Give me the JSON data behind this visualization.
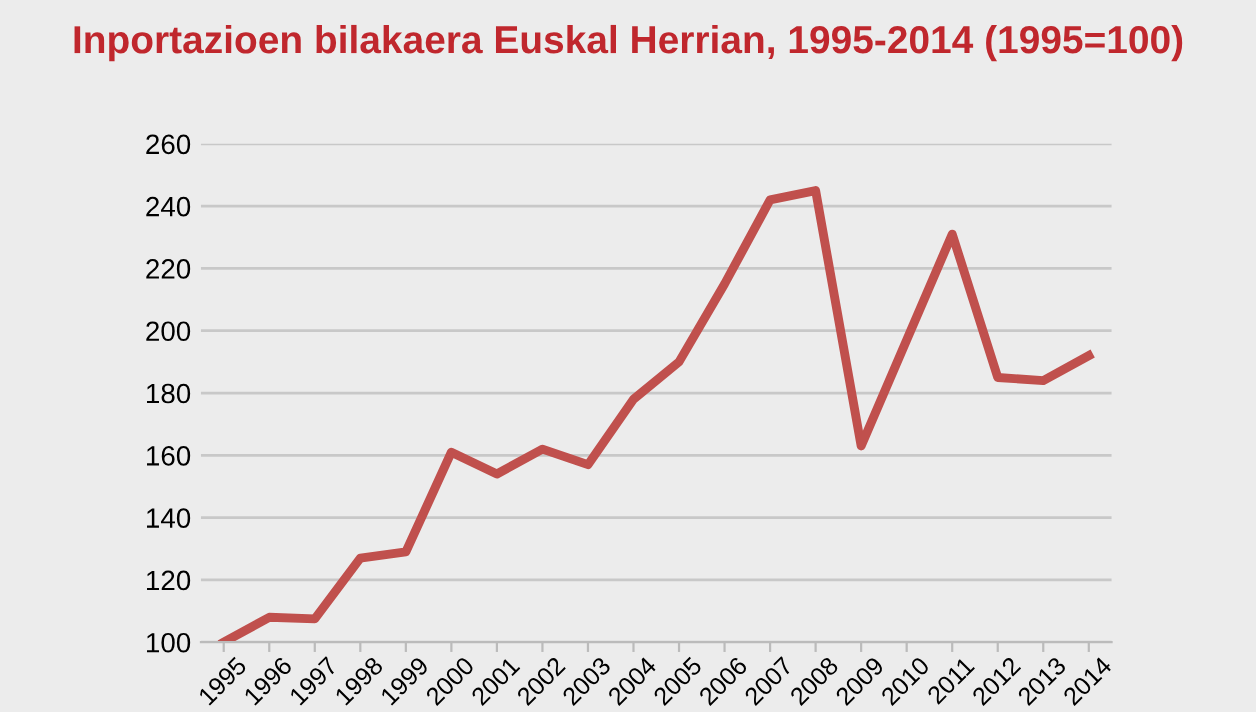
{
  "chart_data": {
    "type": "line",
    "title": "Inportazioen bilakaera Euskal Herrian, 1995-2014 (1995=100)",
    "categories": [
      "1995",
      "1996",
      "1997",
      "1998",
      "1999",
      "2000",
      "2001",
      "2002",
      "2003",
      "2004",
      "2005",
      "2006",
      "2007",
      "2008",
      "2009",
      "2010",
      "2011",
      "2012",
      "2013",
      "2014"
    ],
    "series": [
      {
        "color": "#c0504d",
        "values": [
          100,
          108,
          107.5,
          127,
          129,
          161,
          154,
          162,
          157,
          178,
          190,
          215,
          242,
          245,
          163,
          197,
          231,
          185,
          184,
          192
        ]
      }
    ],
    "ylim": [
      100,
      260
    ],
    "yticks": [
      100,
      120,
      140,
      160,
      180,
      200,
      220,
      240,
      260
    ],
    "grid": "y",
    "legend": false,
    "marker": "none",
    "line_style": "solid"
  }
}
